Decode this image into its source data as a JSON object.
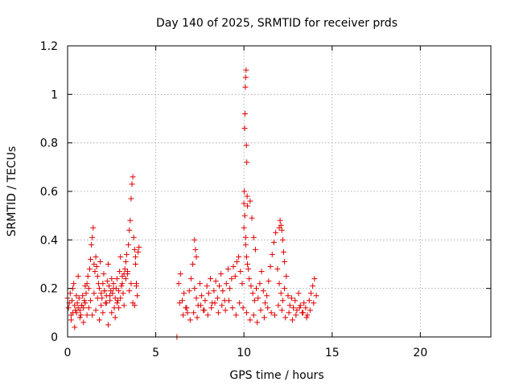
{
  "chart_data": {
    "type": "scatter",
    "title": "Day 140 of 2025, SRMTID for receiver prds",
    "xlabel": "GPS time / hours",
    "ylabel": "SRMTID / TECUs",
    "xlim": [
      0,
      24
    ],
    "ylim": [
      0,
      1.2
    ],
    "xticks": [
      0,
      5,
      10,
      15,
      20
    ],
    "yticks": [
      0,
      0.2,
      0.4,
      0.6,
      0.8,
      1,
      1.2
    ],
    "xtick_labels": [
      "0",
      "5",
      "10",
      "15",
      "20"
    ],
    "ytick_labels": [
      "0",
      "0.2",
      "0.4",
      "0.6",
      "0.8",
      "1",
      "1.2"
    ],
    "grid": true,
    "marker": "+",
    "color": "#e00000",
    "series": [
      {
        "name": "SRMTID",
        "x": [
          0.0,
          0.05,
          0.1,
          0.15,
          0.2,
          0.25,
          0.3,
          0.35,
          0.4,
          0.45,
          0.5,
          0.55,
          0.6,
          0.65,
          0.7,
          0.75,
          0.8,
          0.85,
          0.9,
          0.95,
          1.0,
          1.05,
          1.1,
          1.15,
          1.2,
          1.25,
          1.3,
          1.35,
          1.4,
          1.45,
          1.5,
          1.55,
          1.6,
          1.65,
          1.7,
          1.75,
          1.8,
          1.85,
          1.9,
          1.95,
          2.0,
          2.05,
          2.1,
          2.15,
          2.2,
          2.25,
          2.3,
          2.35,
          2.4,
          2.45,
          2.5,
          2.55,
          2.6,
          2.65,
          2.7,
          2.75,
          2.8,
          2.85,
          2.9,
          2.95,
          3.0,
          3.05,
          3.1,
          3.15,
          3.2,
          3.25,
          3.3,
          3.35,
          3.4,
          3.45,
          3.5,
          3.55,
          3.6,
          3.65,
          3.7,
          3.75,
          3.8,
          3.85,
          3.9,
          3.95,
          4.0,
          4.05,
          0.2,
          0.3,
          0.4,
          0.5,
          0.6,
          0.7,
          0.8,
          0.9,
          1.0,
          1.1,
          1.2,
          1.3,
          1.4,
          1.5,
          1.6,
          1.7,
          1.8,
          1.9,
          2.0,
          2.1,
          2.2,
          2.3,
          2.4,
          2.5,
          2.6,
          2.7,
          2.8,
          2.9,
          3.0,
          3.1,
          3.2,
          3.3,
          3.4,
          3.5,
          3.6,
          3.7,
          3.8,
          3.85,
          3.9,
          6.2,
          6.3,
          6.4,
          6.5,
          6.6,
          6.7,
          6.8,
          6.9,
          7.0,
          7.1,
          7.2,
          7.3,
          7.4,
          7.5,
          7.6,
          7.7,
          7.8,
          7.9,
          8.0,
          8.1,
          8.2,
          8.3,
          8.4,
          8.5,
          8.6,
          8.7,
          8.8,
          8.9,
          9.0,
          9.1,
          9.2,
          9.3,
          9.4,
          9.5,
          9.6,
          9.7,
          9.8,
          9.9,
          10.0,
          10.1,
          10.2,
          10.3,
          10.4,
          10.5,
          10.6,
          10.7,
          10.8,
          10.9,
          11.0,
          11.1,
          11.2,
          11.3,
          11.4,
          11.5,
          11.6,
          11.7,
          11.8,
          11.9,
          12.0,
          12.1,
          12.2,
          12.3,
          12.4,
          12.5,
          12.6,
          12.7,
          12.8,
          12.9,
          13.0,
          13.1,
          13.2,
          13.3,
          13.4,
          13.5,
          13.6,
          13.7,
          13.8,
          13.9,
          14.0,
          14.1,
          6.35,
          6.55,
          6.75,
          6.95,
          7.15,
          7.35,
          7.55,
          7.75,
          7.95,
          8.15,
          8.35,
          8.55,
          8.75,
          8.95,
          9.15,
          9.35,
          9.55,
          9.75,
          9.95,
          10.15,
          10.35,
          10.55,
          10.75,
          10.95,
          11.15,
          11.35,
          11.55,
          11.75,
          11.95,
          12.15,
          12.35,
          12.55,
          12.75,
          12.95,
          13.15,
          13.35,
          13.55,
          13.75,
          13.95,
          10.0,
          10.02,
          10.04,
          10.06,
          10.08,
          10.1,
          10.12,
          10.14,
          10.16,
          10.18,
          10.2,
          10.05,
          10.1,
          10.15,
          10.25,
          10.35,
          10.45,
          10.55,
          10.65,
          12.0,
          12.05,
          12.1,
          12.15,
          12.2,
          12.25,
          12.3,
          7.2,
          7.25,
          7.3
        ],
        "y": [
          0.16,
          0.12,
          0.14,
          0.18,
          0.09,
          0.15,
          0.2,
          0.22,
          0.13,
          0.11,
          0.1,
          0.14,
          0.12,
          0.16,
          0.11,
          0.09,
          0.13,
          0.17,
          0.12,
          0.15,
          0.14,
          0.18,
          0.22,
          0.25,
          0.2,
          0.28,
          0.32,
          0.38,
          0.41,
          0.45,
          0.3,
          0.27,
          0.33,
          0.29,
          0.25,
          0.22,
          0.2,
          0.31,
          0.18,
          0.16,
          0.22,
          0.26,
          0.19,
          0.14,
          0.17,
          0.23,
          0.3,
          0.21,
          0.15,
          0.19,
          0.24,
          0.18,
          0.22,
          0.12,
          0.16,
          0.2,
          0.24,
          0.15,
          0.19,
          0.27,
          0.33,
          0.21,
          0.25,
          0.18,
          0.26,
          0.28,
          0.31,
          0.34,
          0.27,
          0.38,
          0.44,
          0.48,
          0.57,
          0.63,
          0.66,
          0.41,
          0.36,
          0.3,
          0.22,
          0.17,
          0.35,
          0.37,
          0.07,
          0.1,
          0.04,
          0.17,
          0.25,
          0.08,
          0.13,
          0.06,
          0.21,
          0.09,
          0.12,
          0.15,
          0.09,
          0.18,
          0.11,
          0.16,
          0.07,
          0.13,
          0.1,
          0.19,
          0.14,
          0.05,
          0.17,
          0.1,
          0.2,
          0.08,
          0.14,
          0.12,
          0.16,
          0.22,
          0.13,
          0.24,
          0.26,
          0.19,
          0.22,
          0.14,
          0.13,
          0.33,
          0.21,
          0.0,
          0.22,
          0.26,
          0.15,
          0.18,
          0.12,
          0.1,
          0.19,
          0.24,
          0.3,
          0.2,
          0.16,
          0.13,
          0.22,
          0.17,
          0.11,
          0.15,
          0.21,
          0.18,
          0.24,
          0.14,
          0.19,
          0.23,
          0.16,
          0.21,
          0.26,
          0.19,
          0.15,
          0.22,
          0.28,
          0.2,
          0.24,
          0.29,
          0.25,
          0.31,
          0.33,
          0.27,
          0.22,
          0.45,
          0.41,
          0.3,
          0.24,
          0.21,
          0.18,
          0.15,
          0.2,
          0.16,
          0.22,
          0.27,
          0.19,
          0.14,
          0.17,
          0.23,
          0.29,
          0.34,
          0.39,
          0.43,
          0.28,
          0.22,
          0.18,
          0.15,
          0.2,
          0.25,
          0.17,
          0.13,
          0.16,
          0.12,
          0.15,
          0.11,
          0.18,
          0.13,
          0.1,
          0.14,
          0.12,
          0.09,
          0.15,
          0.18,
          0.21,
          0.24,
          0.17,
          0.14,
          0.09,
          0.12,
          0.07,
          0.1,
          0.08,
          0.13,
          0.11,
          0.09,
          0.12,
          0.14,
          0.1,
          0.13,
          0.11,
          0.15,
          0.12,
          0.09,
          0.14,
          0.12,
          0.1,
          0.07,
          0.09,
          0.06,
          0.11,
          0.08,
          0.12,
          0.1,
          0.09,
          0.13,
          0.11,
          0.08,
          0.1,
          0.07,
          0.09,
          0.12,
          0.1,
          0.08,
          0.11,
          0.14,
          0.55,
          0.6,
          0.86,
          0.92,
          1.03,
          1.07,
          1.1,
          0.79,
          0.72,
          0.58,
          0.54,
          0.5,
          0.38,
          0.33,
          0.28,
          0.56,
          0.49,
          0.41,
          0.36,
          0.45,
          0.48,
          0.46,
          0.44,
          0.4,
          0.35,
          0.31,
          0.4,
          0.36,
          0.33
        ]
      }
    ]
  }
}
